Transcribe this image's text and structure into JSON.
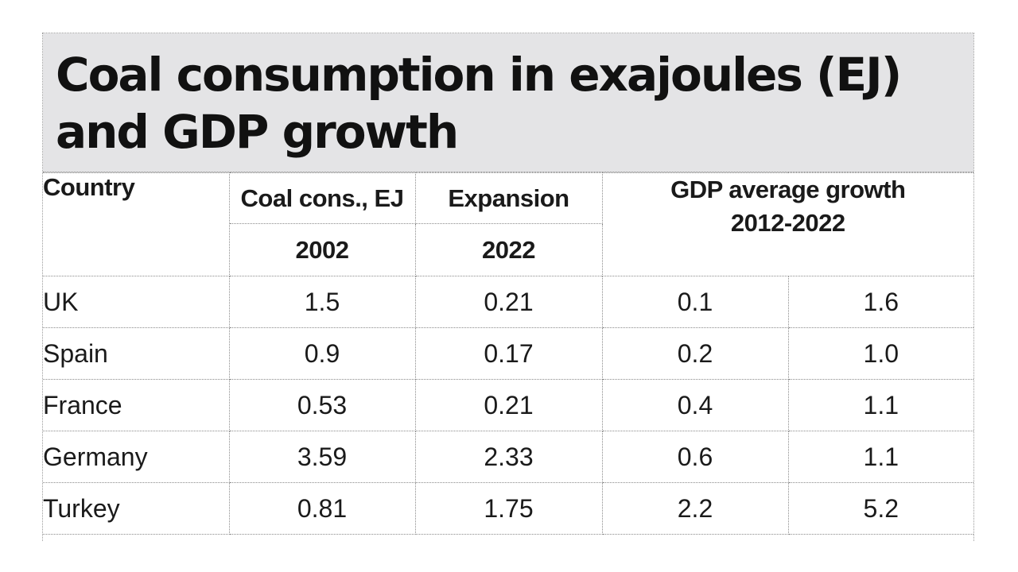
{
  "title": "Coal consumption in exajoules (EJ) and GDP growth",
  "headers": {
    "country": "Country",
    "coal_cons": "Coal cons., EJ",
    "expansion": "Expansion",
    "gdp_line1": "GDP average growth",
    "gdp_line2": "2012-2022",
    "year_2002": "2002",
    "year_2022": "2022"
  },
  "rows": [
    {
      "country": "UK",
      "coal_2002": "1.5",
      "coal_2022": "0.21",
      "gdp_a": "0.1",
      "gdp_b": "1.6"
    },
    {
      "country": "Spain",
      "coal_2002": "0.9",
      "coal_2022": "0.17",
      "gdp_a": "0.2",
      "gdp_b": "1.0"
    },
    {
      "country": "France",
      "coal_2002": "0.53",
      "coal_2022": "0.21",
      "gdp_a": "0.4",
      "gdp_b": "1.1"
    },
    {
      "country": "Germany",
      "coal_2002": "3.59",
      "coal_2022": "2.33",
      "gdp_a": "0.6",
      "gdp_b": "1.1"
    },
    {
      "country": "Turkey",
      "coal_2002": "0.81",
      "coal_2022": "1.75",
      "gdp_a": "2.2",
      "gdp_b": "5.2"
    }
  ]
}
